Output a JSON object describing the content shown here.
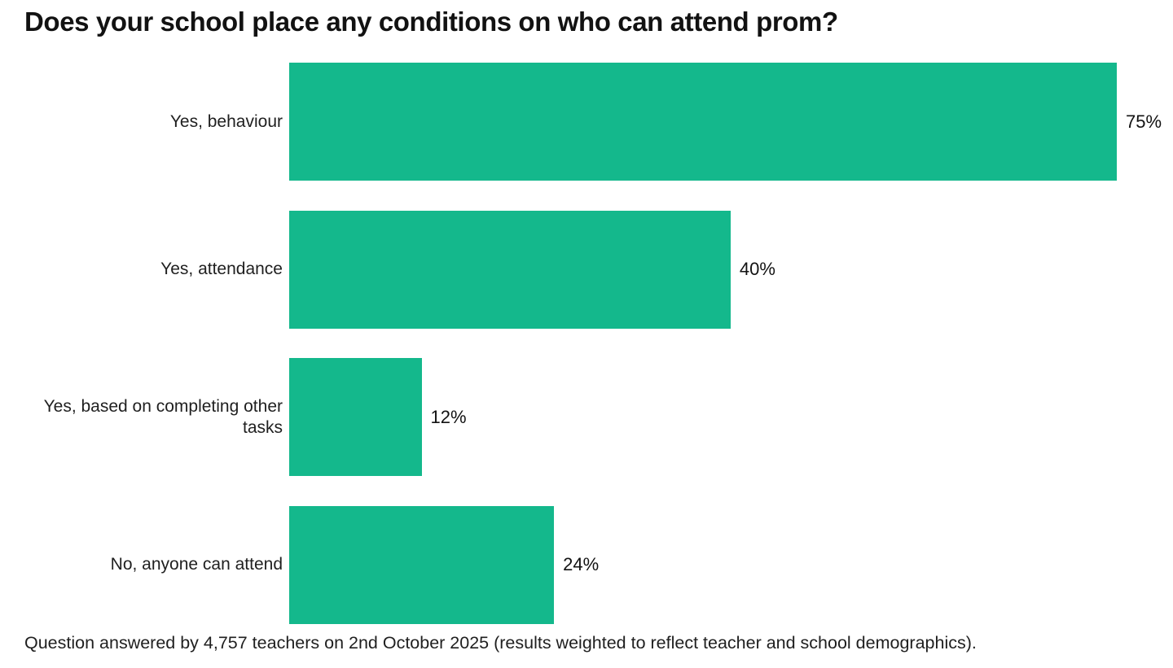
{
  "title": "Does your school place any conditions on who can attend prom?",
  "footnote": "Question answered by 4,757 teachers on 2nd October 2025 (results weighted to reflect teacher and school demographics).",
  "colors": {
    "bar": "#14b88c",
    "title_text": "#121212",
    "body_text": "#1f1f1f",
    "background": "#ffffff"
  },
  "chart_data": {
    "type": "bar",
    "orientation": "horizontal",
    "title": "Does your school place any conditions on who can attend prom?",
    "categories": [
      "Yes, behaviour",
      "Yes, attendance",
      "Yes, based on completing other tasks",
      "No, anyone can attend"
    ],
    "values": [
      75,
      40,
      12,
      24
    ],
    "value_labels": [
      "75%",
      "40%",
      "12%",
      "24%"
    ],
    "unit": "%",
    "xlabel": "",
    "ylabel": "",
    "xlim": [
      0,
      80
    ],
    "grid": false,
    "legend": false,
    "bar_label_position": "right-of-bar",
    "category_label_position": "left-of-bar",
    "source_note": "Question answered by 4,757 teachers on 2nd October 2025 (results weighted to reflect teacher and school demographics)."
  }
}
